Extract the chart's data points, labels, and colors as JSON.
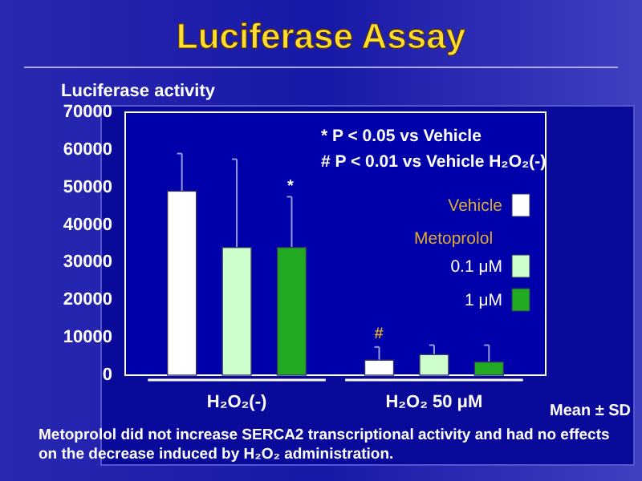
{
  "chart_data": {
    "type": "bar",
    "title": "Luciferase Assay",
    "ylabel": "Luciferase activity",
    "categories": [
      "H₂O₂(-)",
      "H₂O₂ 50 μM"
    ],
    "series": [
      {
        "name": "Vehicle",
        "color": "#ffffff",
        "values": [
          49000,
          4000
        ],
        "errors": [
          [
            49000,
            59000
          ],
          [
            4000,
            7500
          ]
        ]
      },
      {
        "name": "0.1 μM",
        "color": "#ccffcc",
        "values": [
          34000,
          5500
        ],
        "errors": [
          [
            34000,
            57500
          ],
          [
            5500,
            8000
          ]
        ]
      },
      {
        "name": "1 μM",
        "color": "#22aa22",
        "values": [
          34000,
          3500
        ],
        "errors": [
          [
            34000,
            47500
          ],
          [
            3500,
            8000
          ]
        ]
      }
    ],
    "legend_title": "Metoprolol",
    "legend": "right",
    "ylim": [
      0,
      70000
    ],
    "yticks": [
      0,
      10000,
      20000,
      30000,
      40000,
      50000,
      60000,
      70000
    ],
    "grid": false,
    "annotations": [
      "*",
      "#",
      "* P < 0.05 vs Vehicle",
      "# P < 0.01 vs Vehicle H₂O₂(-)",
      "Mean ± SD",
      "Metoprolol did not increase SERCA2 transcriptional activity and had no effects on the decrease induced by H₂O₂ administration."
    ]
  }
}
